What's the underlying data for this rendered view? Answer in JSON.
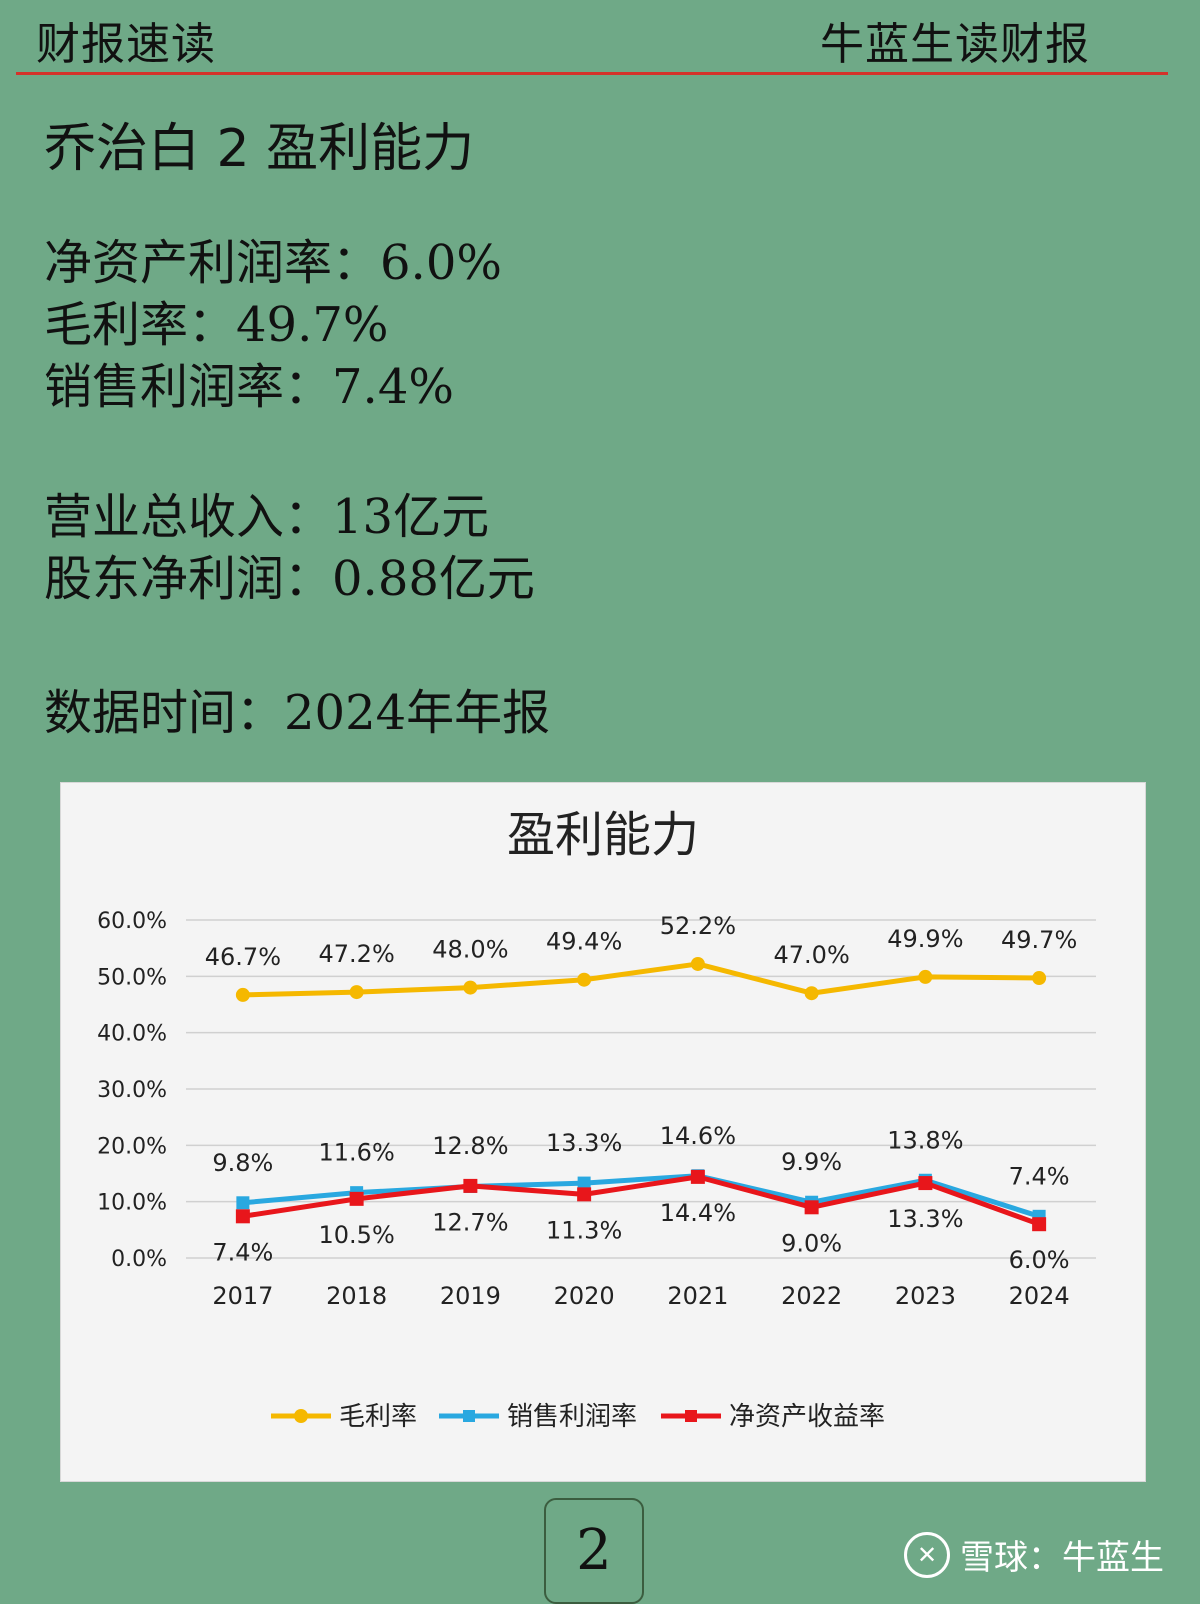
{
  "header": {
    "left": "财报速读",
    "right": "牛蓝生读财报"
  },
  "section_title": "乔治白 2 盈利能力",
  "metrics_ratios": [
    {
      "label": "净资产利润率：",
      "value": "6.0%"
    },
    {
      "label": "毛利率：",
      "value": "49.7%"
    },
    {
      "label": "销售利润率：",
      "value": "7.4%"
    }
  ],
  "metrics_amounts": [
    {
      "label": "营业总收入：",
      "value": "13亿元"
    },
    {
      "label": "股东净利润：",
      "value": "0.88亿元"
    }
  ],
  "data_time": {
    "label": "数据时间：",
    "value": "2024年年报"
  },
  "page_number": "2",
  "watermark": {
    "icon": "xueqiu-logo-icon",
    "text": "雪球：牛蓝生"
  },
  "chart_data": {
    "type": "line",
    "title": "盈利能力",
    "categories": [
      "2017",
      "2018",
      "2019",
      "2020",
      "2021",
      "2022",
      "2023",
      "2024"
    ],
    "ylim": [
      0,
      60
    ],
    "yticks": [
      "0.0%",
      "10.0%",
      "20.0%",
      "30.0%",
      "40.0%",
      "50.0%",
      "60.0%"
    ],
    "grid": true,
    "legend_position": "bottom",
    "series": [
      {
        "name": "毛利率",
        "color": "#f5b800",
        "marker": "circle",
        "values": [
          46.7,
          47.2,
          48.0,
          49.4,
          52.2,
          47.0,
          49.9,
          49.7
        ],
        "labels": [
          "46.7%",
          "47.2%",
          "48.0%",
          "49.4%",
          "52.2%",
          "47.0%",
          "49.9%",
          "49.7%"
        ]
      },
      {
        "name": "销售利润率",
        "color": "#29a8e0",
        "marker": "square",
        "values": [
          9.8,
          11.6,
          12.7,
          13.3,
          14.6,
          9.9,
          13.8,
          7.4
        ],
        "labels": [
          "9.8%",
          "11.6%",
          "12.7%",
          "13.3%",
          "14.6%",
          "9.9%",
          "13.8%",
          "7.4%"
        ]
      },
      {
        "name": "净资产收益率",
        "color": "#e8161b",
        "marker": "square",
        "values": [
          7.4,
          10.5,
          12.8,
          11.3,
          14.4,
          9.0,
          13.3,
          6.0
        ],
        "labels": [
          "7.4%",
          "10.5%",
          "12.8%",
          "11.3%",
          "14.4%",
          "9.0%",
          "13.3%",
          "6.0%"
        ]
      }
    ]
  }
}
